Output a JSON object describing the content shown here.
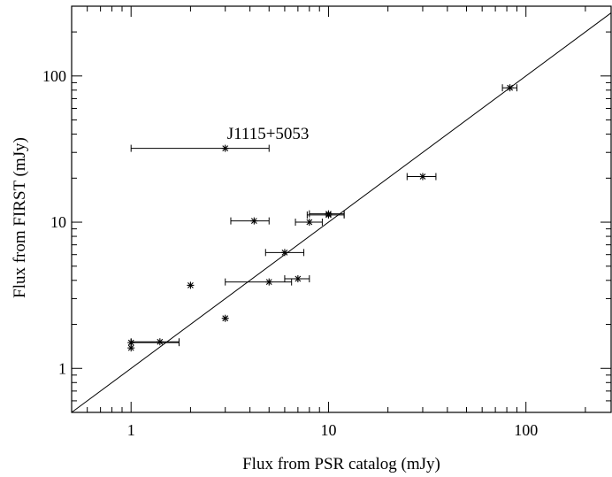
{
  "chart_data": {
    "type": "scatter",
    "xlabel": "Flux from PSR catalog (mJy)",
    "ylabel": "Flux from  FIRST  (mJy)",
    "x_scale": "log",
    "y_scale": "log",
    "xlim": [
      0.5,
      270
    ],
    "ylim": [
      0.5,
      300
    ],
    "x_ticks": [
      {
        "value": 1,
        "label": "1"
      },
      {
        "value": 10,
        "label": "10"
      },
      {
        "value": 100,
        "label": "100"
      }
    ],
    "y_ticks": [
      {
        "value": 1,
        "label": "1"
      },
      {
        "value": 10,
        "label": "10"
      },
      {
        "value": 100,
        "label": "100"
      }
    ],
    "reference_line": "y = x",
    "annotations": [
      {
        "text": "J1115+5053",
        "x": 3,
        "y": 37
      }
    ],
    "points": [
      {
        "x": 1.0,
        "y": 1.38
      },
      {
        "x": 1.0,
        "y": 1.5,
        "xerr": [
          1.0,
          1.75
        ]
      },
      {
        "x": 1.4,
        "y": 1.52,
        "xerr": [
          1.0,
          1.75
        ]
      },
      {
        "x": 2.0,
        "y": 3.7
      },
      {
        "x": 3.0,
        "y": 2.2
      },
      {
        "x": 3.0,
        "y": 32,
        "xerr": [
          1.0,
          5.0
        ]
      },
      {
        "x": 4.2,
        "y": 10.2,
        "xerr": [
          3.2,
          5.0
        ]
      },
      {
        "x": 5.0,
        "y": 3.9,
        "xerr": [
          3.0,
          6.5
        ]
      },
      {
        "x": 6.0,
        "y": 6.2,
        "xerr": [
          4.8,
          7.5
        ]
      },
      {
        "x": 7.0,
        "y": 4.1,
        "xerr": [
          6.0,
          8.0
        ]
      },
      {
        "x": 8.0,
        "y": 10.0,
        "xerr": [
          6.8,
          9.3
        ]
      },
      {
        "x": 10.0,
        "y": 11.2,
        "xerr": [
          7.8,
          12.0
        ]
      },
      {
        "x": 10.0,
        "y": 11.4,
        "xerr": [
          8.0,
          12.0
        ]
      },
      {
        "x": 30.0,
        "y": 20.5,
        "xerr": [
          25.0,
          35.0
        ]
      },
      {
        "x": 83.0,
        "y": 83.0,
        "xerr": [
          76.0,
          90.0
        ]
      }
    ]
  }
}
